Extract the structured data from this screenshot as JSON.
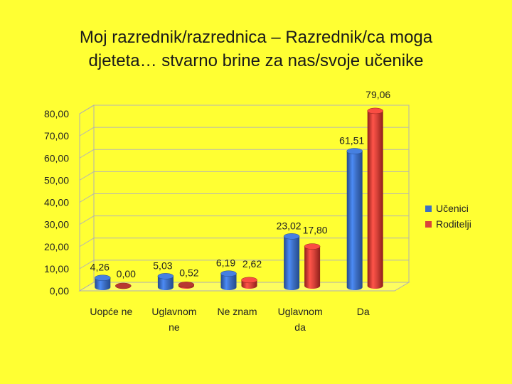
{
  "title_line1": "Moj razrednik/razrednica – Razrednik/ca moga",
  "title_line2": "djeteta… stvarno brine za nas/svoje učenike",
  "chart_data": {
    "type": "bar",
    "categories": [
      [
        "Uopće ne"
      ],
      [
        "Uglavnom",
        "ne"
      ],
      [
        "Ne znam"
      ],
      [
        "Uglavnom",
        "da"
      ],
      [
        "Da"
      ]
    ],
    "series": [
      {
        "name": "Učenici",
        "values": [
          4.26,
          5.03,
          6.19,
          23.02,
          61.51
        ],
        "labels": [
          "4,26",
          "5,03",
          "6,19",
          "23,02",
          "61,51"
        ],
        "color": "#3d6fc4",
        "dark": "#244a8c"
      },
      {
        "name": "Roditelji",
        "values": [
          0.0,
          0.52,
          2.62,
          17.8,
          79.06
        ],
        "labels": [
          "0,00",
          "0,52",
          "2,62",
          "17,80",
          "79,06"
        ],
        "color": "#d9433a",
        "dark": "#8f1f1a"
      }
    ],
    "yticks": [
      "0,00",
      "10,00",
      "20,00",
      "30,00",
      "40,00",
      "50,00",
      "60,00",
      "70,00",
      "80,00"
    ],
    "ylim": [
      0,
      80
    ],
    "grid": true,
    "legend_position": "right"
  }
}
